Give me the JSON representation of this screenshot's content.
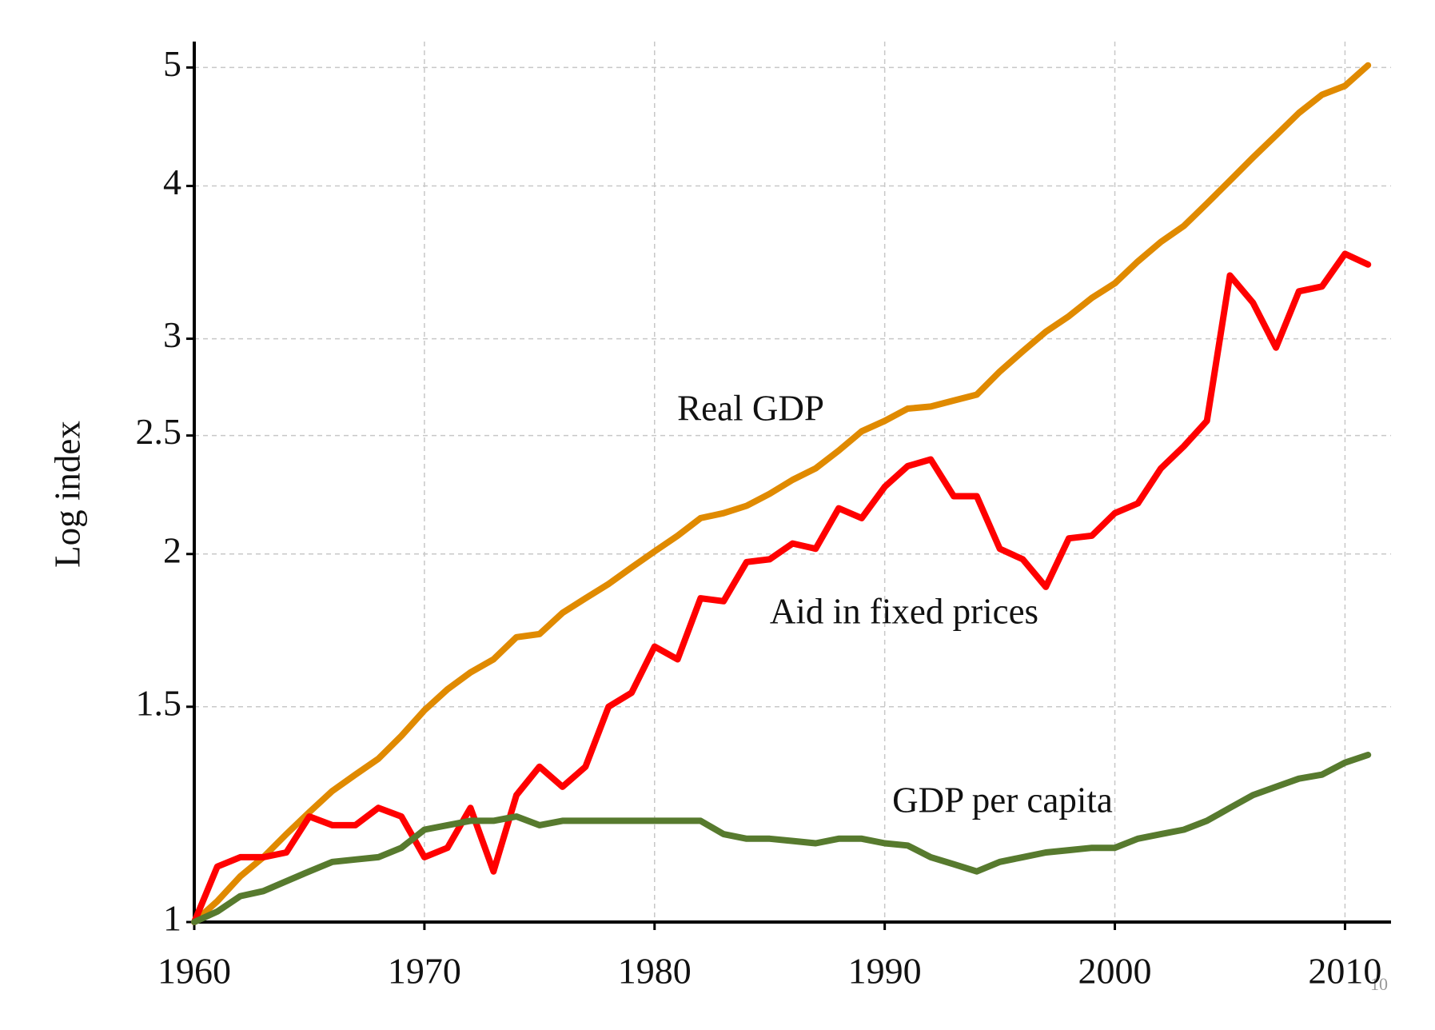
{
  "chart_data": {
    "type": "line",
    "y_label": "Log index",
    "page_number": "10",
    "x": [
      1960,
      1961,
      1962,
      1963,
      1964,
      1965,
      1966,
      1967,
      1968,
      1969,
      1970,
      1971,
      1972,
      1973,
      1974,
      1975,
      1976,
      1977,
      1978,
      1979,
      1980,
      1981,
      1982,
      1983,
      1984,
      1985,
      1986,
      1987,
      1988,
      1989,
      1990,
      1991,
      1992,
      1993,
      1994,
      1995,
      1996,
      1997,
      1998,
      1999,
      2000,
      2001,
      2002,
      2003,
      2004,
      2005,
      2006,
      2007,
      2008,
      2009,
      2010,
      2011
    ],
    "series": [
      {
        "name": "Real GDP",
        "color": "#e08a00",
        "values": [
          1.0,
          1.04,
          1.09,
          1.13,
          1.18,
          1.23,
          1.28,
          1.32,
          1.36,
          1.42,
          1.49,
          1.55,
          1.6,
          1.64,
          1.71,
          1.72,
          1.79,
          1.84,
          1.89,
          1.95,
          2.01,
          2.07,
          2.14,
          2.16,
          2.19,
          2.24,
          2.3,
          2.35,
          2.43,
          2.52,
          2.57,
          2.63,
          2.64,
          2.67,
          2.7,
          2.82,
          2.93,
          3.04,
          3.13,
          3.24,
          3.33,
          3.47,
          3.6,
          3.71,
          3.87,
          4.04,
          4.22,
          4.4,
          4.59,
          4.75,
          4.83,
          5.02
        ]
      },
      {
        "name": "Aid in fixed prices",
        "color": "#ff0000",
        "values": [
          1.0,
          1.11,
          1.13,
          1.13,
          1.14,
          1.22,
          1.2,
          1.2,
          1.24,
          1.22,
          1.13,
          1.15,
          1.24,
          1.1,
          1.27,
          1.34,
          1.29,
          1.34,
          1.5,
          1.54,
          1.68,
          1.64,
          1.84,
          1.83,
          1.97,
          1.98,
          2.04,
          2.02,
          2.18,
          2.14,
          2.27,
          2.36,
          2.39,
          2.23,
          2.23,
          2.02,
          1.98,
          1.88,
          2.06,
          2.07,
          2.16,
          2.2,
          2.35,
          2.45,
          2.57,
          3.38,
          3.21,
          2.95,
          3.28,
          3.31,
          3.52,
          3.45
        ]
      },
      {
        "name": "GDP per capita",
        "color": "#577a2e",
        "values": [
          1.0,
          1.02,
          1.05,
          1.06,
          1.08,
          1.1,
          1.12,
          1.125,
          1.13,
          1.15,
          1.19,
          1.2,
          1.21,
          1.21,
          1.22,
          1.2,
          1.21,
          1.21,
          1.21,
          1.21,
          1.21,
          1.21,
          1.21,
          1.18,
          1.17,
          1.17,
          1.165,
          1.16,
          1.17,
          1.17,
          1.16,
          1.155,
          1.13,
          1.115,
          1.1,
          1.12,
          1.13,
          1.14,
          1.145,
          1.15,
          1.15,
          1.17,
          1.18,
          1.19,
          1.21,
          1.24,
          1.27,
          1.29,
          1.31,
          1.32,
          1.35,
          1.37
        ]
      }
    ],
    "xlim": [
      1960,
      2012
    ],
    "xticks": [
      1960,
      1970,
      1980,
      1990,
      2000,
      2010
    ],
    "ylim": [
      1,
      5.25
    ],
    "yticks": [
      1,
      1.5,
      2,
      2.5,
      3,
      4,
      5
    ],
    "log_y": true,
    "grid": true
  }
}
